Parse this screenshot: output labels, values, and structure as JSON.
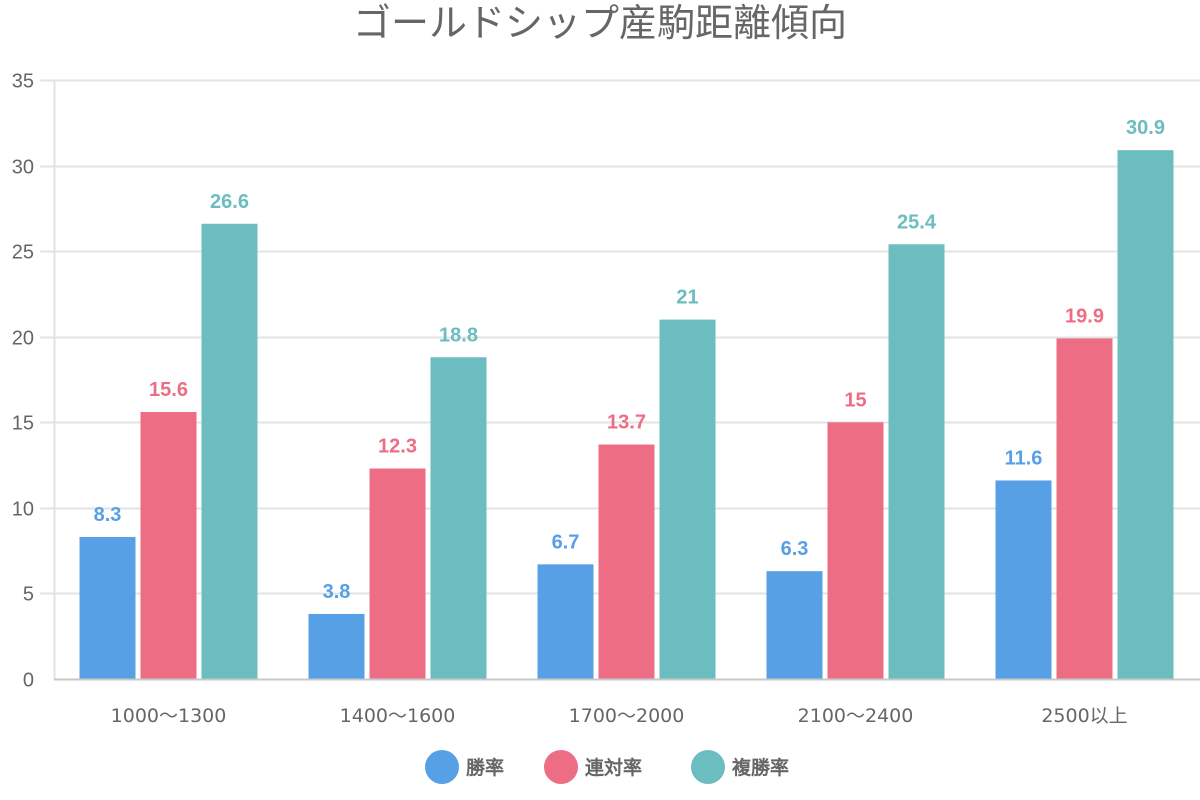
{
  "chart_data": {
    "type": "bar",
    "title": "ゴールドシップ産駒距離傾向",
    "xlabel": "",
    "ylabel": "",
    "categories": [
      "1000〜1300",
      "1400〜1600",
      "1700〜2000",
      "2100〜2400",
      "2500以上"
    ],
    "series": [
      {
        "name": "勝率",
        "color": "#57a0e5",
        "values": [
          8.3,
          3.8,
          6.7,
          6.3,
          11.6
        ],
        "labels": [
          "8.3",
          "3.8",
          "6.7",
          "6.3",
          "11.6"
        ]
      },
      {
        "name": "連対率",
        "color": "#ed6d85",
        "values": [
          15.6,
          12.3,
          13.7,
          15,
          19.9
        ],
        "labels": [
          "15.6",
          "12.3",
          "13.7",
          "15",
          "19.9"
        ]
      },
      {
        "name": "複勝率",
        "color": "#6cbdbf",
        "values": [
          26.6,
          18.8,
          21,
          25.4,
          30.9
        ],
        "labels": [
          "26.6",
          "18.8",
          "21",
          "25.4",
          "30.9"
        ]
      }
    ],
    "ylim": [
      0,
      35
    ],
    "yticks": [
      "0",
      "5",
      "10",
      "15",
      "20",
      "25",
      "30",
      "35"
    ],
    "ytick_values": [
      0,
      5,
      10,
      15,
      20,
      25,
      30,
      35
    ],
    "grid": true,
    "legend_position": "bottom-center",
    "data_labels": true
  }
}
